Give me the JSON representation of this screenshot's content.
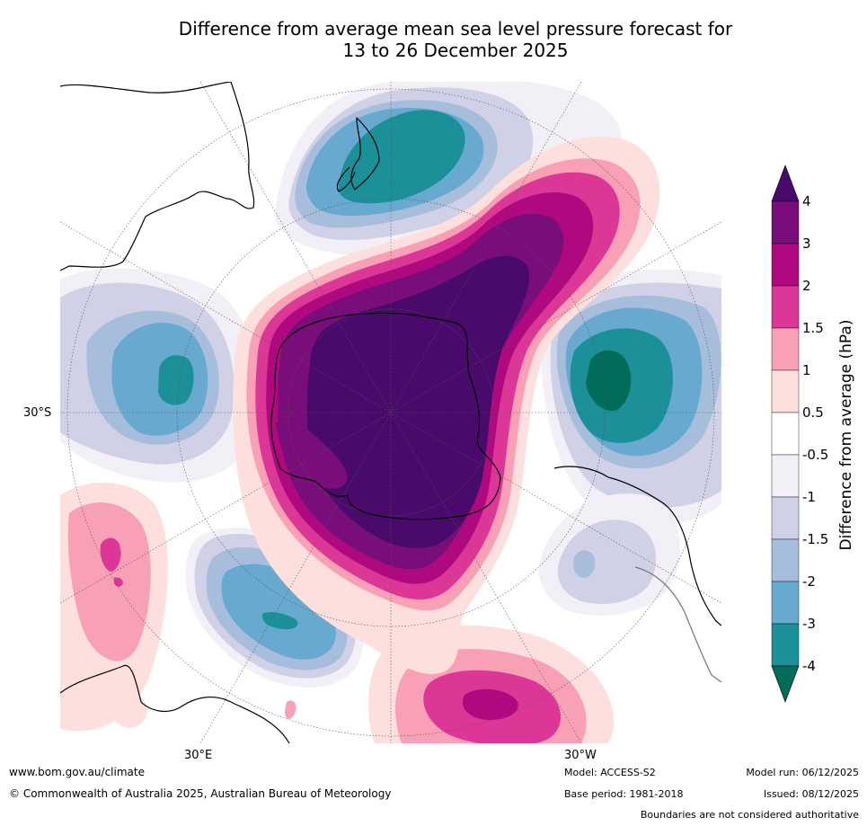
{
  "title": {
    "line1": "Difference from average mean sea level pressure forecast for",
    "line2": "13 to 26 December 2025"
  },
  "map": {
    "lat_label": "30°S",
    "lon_labels": [
      "30°E",
      "30°W"
    ]
  },
  "colorbar": {
    "label": "Difference from average (hPa)",
    "ticks": [
      "4",
      "3",
      "2",
      "1.5",
      "1",
      "0.5",
      "-0.5",
      "-1",
      "-1.5",
      "-2",
      "-3",
      "-4"
    ],
    "colors": {
      "above_max": "#4a0a6b",
      "pos_4": "#790e7a",
      "pos_3": "#b0097f",
      "pos_2": "#dc3796",
      "pos_1_5": "#f8a1b6",
      "pos_1": "#fde0dd",
      "neutral": "#ffffff",
      "neg_0_5": "#f2eff6",
      "neg_1": "#d0d1e6",
      "neg_1_5": "#a6bddb",
      "neg_2": "#67a9cf",
      "neg_3": "#1c9099",
      "below_min": "#016c59"
    }
  },
  "footer": {
    "website": "www.bom.gov.au/climate",
    "copyright": "© Commonwealth of Australia 2025, Australian Bureau of Meteorology",
    "model": "Model: ACCESS-S2",
    "base_period": "Base period: 1981-2018",
    "model_run": "Model run: 06/12/2025",
    "issued": "Issued: 08/12/2025",
    "disclaimer": "Boundaries are not considered authoritative"
  }
}
